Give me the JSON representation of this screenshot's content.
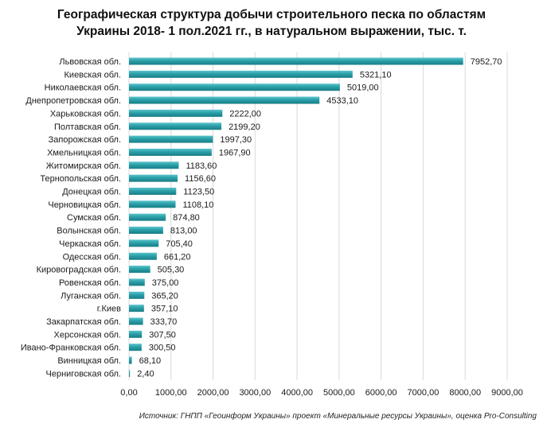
{
  "chart_data": {
    "type": "bar",
    "orientation": "horizontal",
    "title_lines": [
      "Географическая структура добычи строительного песка по областям",
      "Украины 2018- 1 пол.2021 гг., в натуральном выражении, тыс. т."
    ],
    "categories": [
      "Львовская обл.",
      "Киевская обл.",
      "Николаевская обл.",
      "Днепропетровская обл.",
      "Харьковская обл.",
      "Полтавская обл.",
      "Запорожская обл.",
      "Хмельницкая обл.",
      "Житомирская обл.",
      "Тернопольская обл.",
      "Донецкая обл.",
      "Черновицкая обл.",
      "Сумская обл.",
      "Волынская обл.",
      "Черкаская обл.",
      "Одесская обл.",
      "Кировоградская обл.",
      "Ровенская обл.",
      "Луганская обл.",
      "г.Киев",
      "Закарпатская обл.",
      "Херсонская обл.",
      "Ивано-Франковская обл.",
      "Винницкая обл.",
      "Черниговская обл."
    ],
    "values": [
      7952.7,
      5321.1,
      5019.0,
      4533.1,
      2222.0,
      2199.2,
      1997.3,
      1967.9,
      1183.6,
      1156.6,
      1123.5,
      1108.1,
      874.8,
      813.0,
      705.4,
      661.2,
      505.3,
      375.0,
      365.2,
      357.1,
      333.7,
      307.5,
      300.5,
      68.1,
      2.4
    ],
    "value_labels": [
      "7952,70",
      "5321,10",
      "5019,00",
      "4533,10",
      "2222,00",
      "2199,20",
      "1997,30",
      "1967,90",
      "1183,60",
      "1156,60",
      "1123,50",
      "1108,10",
      "874,80",
      "813,00",
      "705,40",
      "661,20",
      "505,30",
      "375,00",
      "365,20",
      "357,10",
      "333,70",
      "307,50",
      "300,50",
      "68,10",
      "2,40"
    ],
    "xlim": [
      0,
      9000
    ],
    "x_ticks": [
      0,
      1000,
      2000,
      3000,
      4000,
      5000,
      6000,
      7000,
      8000,
      9000
    ],
    "x_tick_labels": [
      "0,00",
      "1000,00",
      "2000,00",
      "3000,00",
      "4000,00",
      "5000,00",
      "6000,00",
      "7000,00",
      "8000,00",
      "9000,00"
    ],
    "grid": "vertical",
    "bar_color": "#2a9fa8",
    "legend": "none"
  },
  "source": "Источник: ГНПП «Геоинформ Украины» проект «Минеральные ресурсы Украины», оценка Pro-Consulting"
}
